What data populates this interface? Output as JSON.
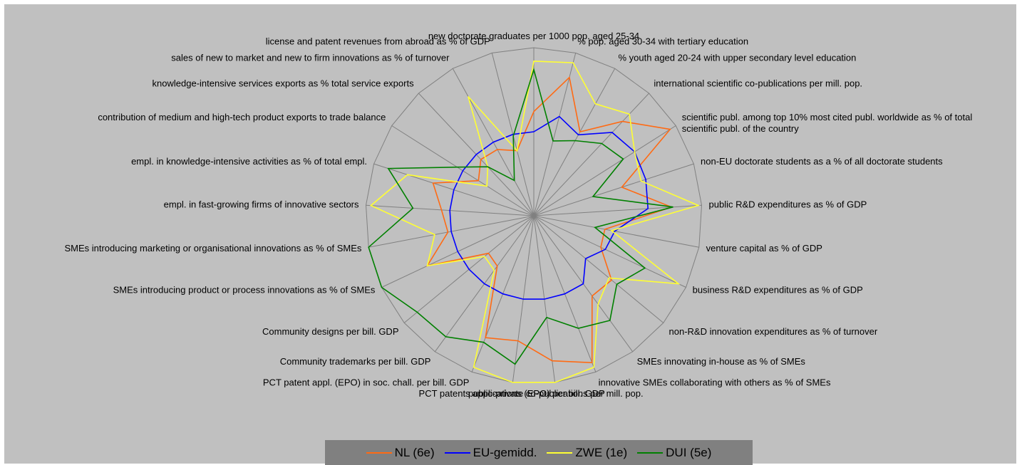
{
  "chart_data": {
    "type": "radar",
    "ylim": [
      0,
      1
    ],
    "grid": true,
    "legend_position": "bottom",
    "axes": [
      "new doctorate graduates per 1000 pop. aged 25-34",
      "% pop. aged 30-34 with tertiary education",
      "% youth aged 20-24 with upper secondary level education",
      "international scientific co-publications per mill. pop.",
      "scientific publ. among top 10% most cited publ. worldwide as % of total scientific publ. of the country",
      "non-EU doctorate students as a % of all doctorate students",
      "public R&D expenditures as % of GDP",
      "venture capital as % of GDP",
      "business R&D expenditures as % of GDP",
      "non-R&D innovation expenditures as % of turnover",
      "SMEs innovating in-house as % of SMEs",
      "innovative SMEs collaborating with others as % of SMEs",
      "public-private co-publications per mill. pop.",
      "PCT patents applications (EPO) per bill. GDP",
      "PCT patent appl. (EPO) in soc. chall. per bill. GDP",
      "Community trademarks per bill. GDP",
      "Community designs per bill. GDP",
      "SMEs introducing product or process innovations as % of SMEs",
      "SMEs introducing marketing or organisational innovations as % of SMEs",
      "empl. in fast-growing firms of innovative sectors",
      "empl. in knowledge-intensive activities as % of total empl.",
      "contribution of medium and high-tech product exports to trade balance",
      "knowledge-intensive services exports as % total service exports",
      "sales of new to market and new to firm innovations as % of turnover",
      "license and patent revenues from abroad as % of GDP"
    ],
    "series": [
      {
        "name": "NL (6e)",
        "color": "#ff6a13",
        "values": [
          0.62,
          0.85,
          0.57,
          0.77,
          0.96,
          0.55,
          0.82,
          0.43,
          0.44,
          0.6,
          0.59,
          0.94,
          0.87,
          0.75,
          0.78,
          0.37,
          0.35,
          0.7,
          0.52,
          0.55,
          0.63,
          0.39,
          0.46,
          0.45,
          0.4
        ]
      },
      {
        "name": "EU-gemidd.",
        "color": "#0000ff",
        "values": [
          0.5,
          0.61,
          0.55,
          0.68,
          0.71,
          0.7,
          0.68,
          0.49,
          0.47,
          0.4,
          0.5,
          0.5,
          0.5,
          0.5,
          0.5,
          0.5,
          0.5,
          0.5,
          0.5,
          0.5,
          0.5,
          0.5,
          0.5,
          0.5,
          0.5
        ]
      },
      {
        "name": "ZWE (1e)",
        "color": "#ffff33",
        "values": [
          0.92,
          0.94,
          0.76,
          0.83,
          0.71,
          0.67,
          0.98,
          0.47,
          0.95,
          0.58,
          0.65,
          0.97,
          1.0,
          1.0,
          0.97,
          0.4,
          0.38,
          0.7,
          0.6,
          0.97,
          0.79,
          0.33,
          0.4,
          0.81,
          0.4
        ]
      },
      {
        "name": "DUI (5e)",
        "color": "#008000",
        "values": [
          0.87,
          0.46,
          0.51,
          0.59,
          0.63,
          0.37,
          0.83,
          0.37,
          0.73,
          0.64,
          0.77,
          0.72,
          0.61,
          0.89,
          0.81,
          0.89,
          0.9,
          1.0,
          1.0,
          0.72,
          0.91,
          0.54,
          0.4,
          0.24,
          0.49
        ]
      }
    ]
  }
}
